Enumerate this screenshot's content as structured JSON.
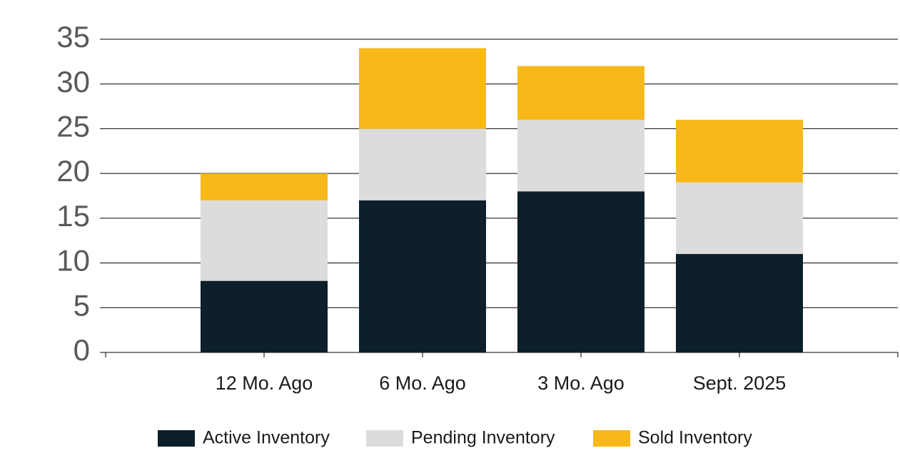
{
  "chart_data": {
    "type": "stacked_bar",
    "categories": [
      "12 Mo. Ago",
      "6 Mo. Ago",
      "3 Mo. Ago",
      "Sept. 2025"
    ],
    "series": [
      {
        "name": "Active Inventory",
        "color": "#0c1f2a",
        "values": [
          8,
          17,
          18,
          11
        ]
      },
      {
        "name": "Pending Inventory",
        "color": "#dcdcdc",
        "values": [
          9,
          8,
          8,
          8
        ]
      },
      {
        "name": "Sold Inventory",
        "color": "#f9b81a",
        "values": [
          3,
          9,
          6,
          7
        ]
      }
    ],
    "ylim": [
      0,
      35
    ],
    "yticks": [
      0,
      5,
      10,
      15,
      20,
      25,
      30,
      35
    ],
    "grid": true,
    "legend": "bottom"
  }
}
